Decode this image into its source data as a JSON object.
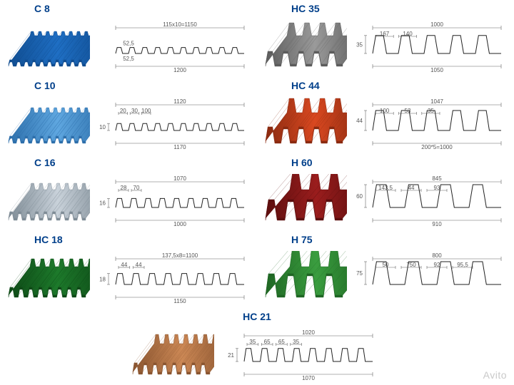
{
  "watermark": "Avito",
  "colors": {
    "title": "#003f8a",
    "dim": "#555555",
    "profile_stroke": "#222222",
    "background": "#ffffff"
  },
  "profiles": [
    {
      "id": "c8",
      "title": "C 8",
      "sheet_color": "#1f6fc4",
      "sheet_shade": "#104d91",
      "wave_height": 6,
      "wave_count": 10,
      "sheet_skew": 30,
      "dims": {
        "top_formula": "115x10=1150",
        "pitch_top": "52,5",
        "pitch_bot": "52,5",
        "width_bot": "1200",
        "height": ""
      }
    },
    {
      "id": "hc35",
      "title": "HC 35",
      "sheet_color": "#9a9a9a",
      "sheet_shade": "#5c5c5c",
      "wave_height": 18,
      "wave_count": 5,
      "sheet_skew": 30,
      "dims": {
        "top_width": "1000",
        "sub1": "167",
        "sub2": "140",
        "height": "35",
        "width_bot": "1050"
      }
    },
    {
      "id": "c10",
      "title": "C 10",
      "sheet_color": "#5fa7e0",
      "sheet_shade": "#2d6fab",
      "wave_height": 7,
      "wave_count": 10,
      "sheet_skew": 30,
      "dims": {
        "top_width": "1120",
        "sub1": "20",
        "sub2": "30",
        "sub3": "100",
        "height": "10",
        "width_bot": "1170"
      }
    },
    {
      "id": "hc44",
      "title": "HC 44",
      "sheet_color": "#d94820",
      "sheet_shade": "#8a2a10",
      "wave_height": 20,
      "wave_count": 5,
      "sheet_skew": 30,
      "dims": {
        "top_width": "1047",
        "sub1": "100",
        "sub2": "53",
        "sub3": "35",
        "height": "44",
        "width_bot": "200*5=1000"
      }
    },
    {
      "id": "c16",
      "title": "C 16",
      "sheet_color": "#c9d2da",
      "sheet_shade": "#7f8c96",
      "wave_height": 9,
      "wave_count": 9,
      "sheet_skew": 30,
      "dims": {
        "top_width": "1070",
        "sub1": "28",
        "sub2": "70",
        "height": "16",
        "width_bot": "1000"
      }
    },
    {
      "id": "h60",
      "title": "H 60",
      "sheet_color": "#9a1d1d",
      "sheet_shade": "#5c0e0e",
      "wave_height": 26,
      "wave_count": 4,
      "sheet_skew": 34,
      "dims": {
        "top_width": "845",
        "sub1": "143,5",
        "sub2": "44",
        "sub3": "93",
        "height": "60",
        "width_bot": "910"
      }
    },
    {
      "id": "hc18",
      "title": "HC 18",
      "sheet_color": "#1d7a2b",
      "sheet_shade": "#0e4a17",
      "wave_height": 11,
      "wave_count": 8,
      "sheet_skew": 30,
      "dims": {
        "top_width": "137,5x8=1100",
        "sub1": "44",
        "sub2": "44",
        "height": "18",
        "width_bot": "1150"
      }
    },
    {
      "id": "h75",
      "title": "H 75",
      "sheet_color": "#3a9d3f",
      "sheet_shade": "#1f6623",
      "wave_height": 30,
      "wave_count": 4,
      "sheet_skew": 34,
      "dims": {
        "top_width": "800",
        "sub1": "50",
        "sub2": "750",
        "sub3": "92",
        "sub4": "95,5",
        "height": "75"
      }
    },
    {
      "id": "hc21",
      "title": "HC 21",
      "sheet_color": "#cc8855",
      "sheet_shade": "#8a5530",
      "wave_height": 13,
      "wave_count": 8,
      "sheet_skew": 30,
      "dims": {
        "top_width": "1020",
        "sub1": "35",
        "sub2": "65",
        "sub3": "65",
        "sub4": "35",
        "height": "21",
        "width_bot": "1070"
      }
    }
  ]
}
